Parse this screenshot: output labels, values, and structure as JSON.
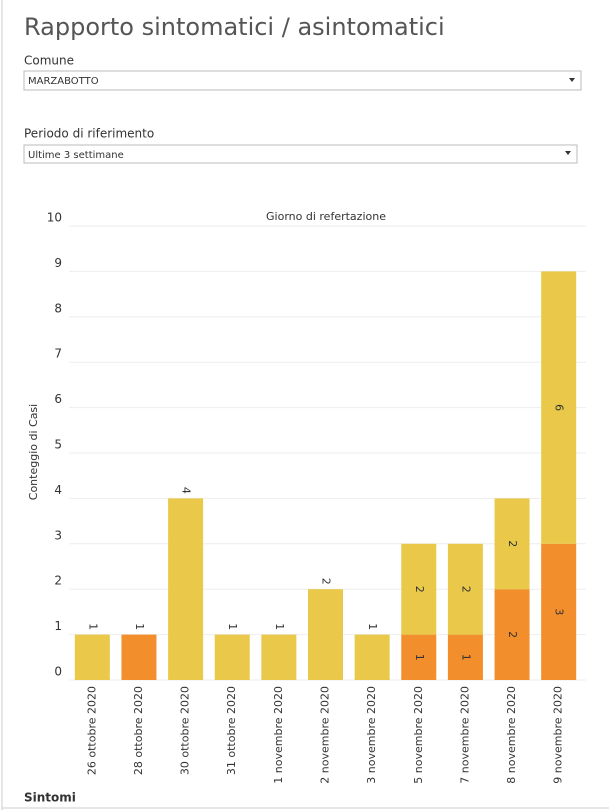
{
  "title": "Rapporto sintomatici / asintomatici",
  "filters": [
    {
      "label": "Comune",
      "value": "MARZABOTTO"
    },
    {
      "label": "Periodo di riferimento",
      "value": "Ultime 3 settimane"
    }
  ],
  "legend_title": "Sintomi",
  "chart_data": {
    "type": "stacked_bar",
    "x_title": "Giorno di refertazione",
    "y_title": "Conteggio di Casi",
    "categories": [
      "26 ottobre 2020",
      "28 ottobre 2020",
      "30 ottobre 2020",
      "31 ottobre 2020",
      "1 novembre 2020",
      "2 novembre 2020",
      "3 novembre 2020",
      "5 novembre 2020",
      "7 novembre 2020",
      "8 novembre 2020",
      "9 novembre 2020"
    ],
    "series": [
      {
        "color": "#f28e2b",
        "values": [
          null,
          1,
          null,
          null,
          null,
          null,
          null,
          1,
          1,
          2,
          3
        ]
      },
      {
        "color": "#e9c84a",
        "values": [
          1,
          null,
          4,
          1,
          1,
          2,
          1,
          2,
          2,
          2,
          6
        ]
      }
    ],
    "ylim": [
      0,
      10
    ],
    "yticks": [
      0,
      1,
      2,
      3,
      4,
      5,
      6,
      7,
      8,
      9,
      10
    ],
    "grid": true
  }
}
